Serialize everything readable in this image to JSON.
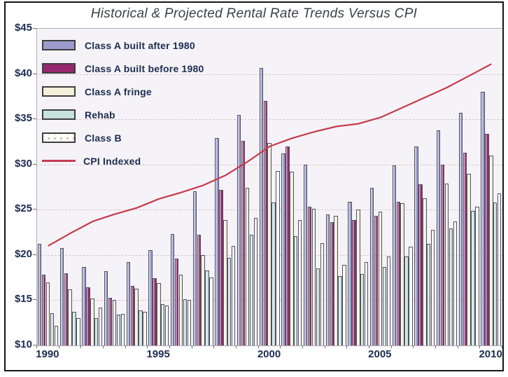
{
  "chart_data": {
    "type": "bar",
    "title": "Historical & Projected Rental Rate Trends Versus CPI",
    "categories": [
      1990,
      1991,
      1992,
      1993,
      1994,
      1995,
      1996,
      1997,
      1998,
      1999,
      2000,
      2001,
      2002,
      2003,
      2004,
      2005,
      2006,
      2007,
      2008,
      2009,
      2010
    ],
    "ylim": [
      10,
      45
    ],
    "y_tick_values": [
      10,
      15,
      20,
      25,
      30,
      35,
      40,
      45
    ],
    "y_tick_labels": [
      "$10",
      "$15",
      "$20",
      "$25",
      "$30",
      "$35",
      "$40",
      "$45"
    ],
    "x_tick_labels": [
      "1990",
      "1995",
      "2000",
      "2005",
      "2010"
    ],
    "grid": "horizontal dashed lines every $5",
    "legend_position": "top-left inside plot",
    "plot_background": "#f5f3f7",
    "axis_label_color": "#1d2c50",
    "series": [
      {
        "name": "Class A built after 1980",
        "type": "bar",
        "color": "#9b9ccd",
        "values": [
          21.2,
          20.8,
          18.7,
          18.2,
          19.2,
          20.5,
          22.3,
          27.0,
          32.9,
          35.5,
          40.7,
          31.2,
          30.0,
          24.5,
          25.9,
          27.4,
          29.9,
          32.0,
          33.8,
          35.7,
          38.0
        ]
      },
      {
        "name": "Class A built before 1980",
        "type": "bar",
        "color": "#97286f",
        "values": [
          17.8,
          18.0,
          16.4,
          15.3,
          16.6,
          17.4,
          19.6,
          22.2,
          27.2,
          32.6,
          37.0,
          32.0,
          25.3,
          23.6,
          23.9,
          24.3,
          25.9,
          27.8,
          30.0,
          31.3,
          33.4
        ]
      },
      {
        "name": "Class A fringe",
        "type": "bar",
        "color": "#f4efd9",
        "values": [
          17.0,
          16.2,
          15.2,
          15.0,
          16.3,
          16.9,
          17.8,
          20.0,
          23.9,
          27.4,
          32.4,
          29.2,
          25.1,
          24.3,
          25.0,
          24.8,
          25.7,
          26.3,
          27.9,
          29.0,
          31.0
        ]
      },
      {
        "name": "Rehab",
        "type": "bar",
        "color": "#c7e3de",
        "values": [
          13.6,
          13.7,
          13.0,
          13.4,
          13.9,
          14.6,
          15.1,
          18.3,
          19.7,
          22.2,
          25.8,
          22.1,
          18.5,
          17.7,
          17.9,
          18.7,
          19.8,
          21.2,
          22.9,
          24.9,
          25.8
        ]
      },
      {
        "name": "Class B",
        "type": "bar",
        "color": "#fdfdf8",
        "pattern": "dots",
        "values": [
          12.2,
          13.0,
          14.2,
          13.5,
          13.7,
          14.4,
          15.0,
          17.5,
          21.0,
          24.1,
          29.3,
          23.9,
          21.3,
          18.9,
          19.2,
          19.8,
          20.9,
          22.8,
          23.7,
          25.3,
          26.8
        ]
      },
      {
        "name": "CPI Indexed",
        "type": "line",
        "color": "#c53b4f",
        "values": [
          21.0,
          22.4,
          23.7,
          24.5,
          25.2,
          26.2,
          26.9,
          27.7,
          28.8,
          30.3,
          32.0,
          32.9,
          33.6,
          34.2,
          34.5,
          35.2,
          36.3,
          37.4,
          38.5,
          39.8,
          41.1
        ]
      }
    ]
  }
}
